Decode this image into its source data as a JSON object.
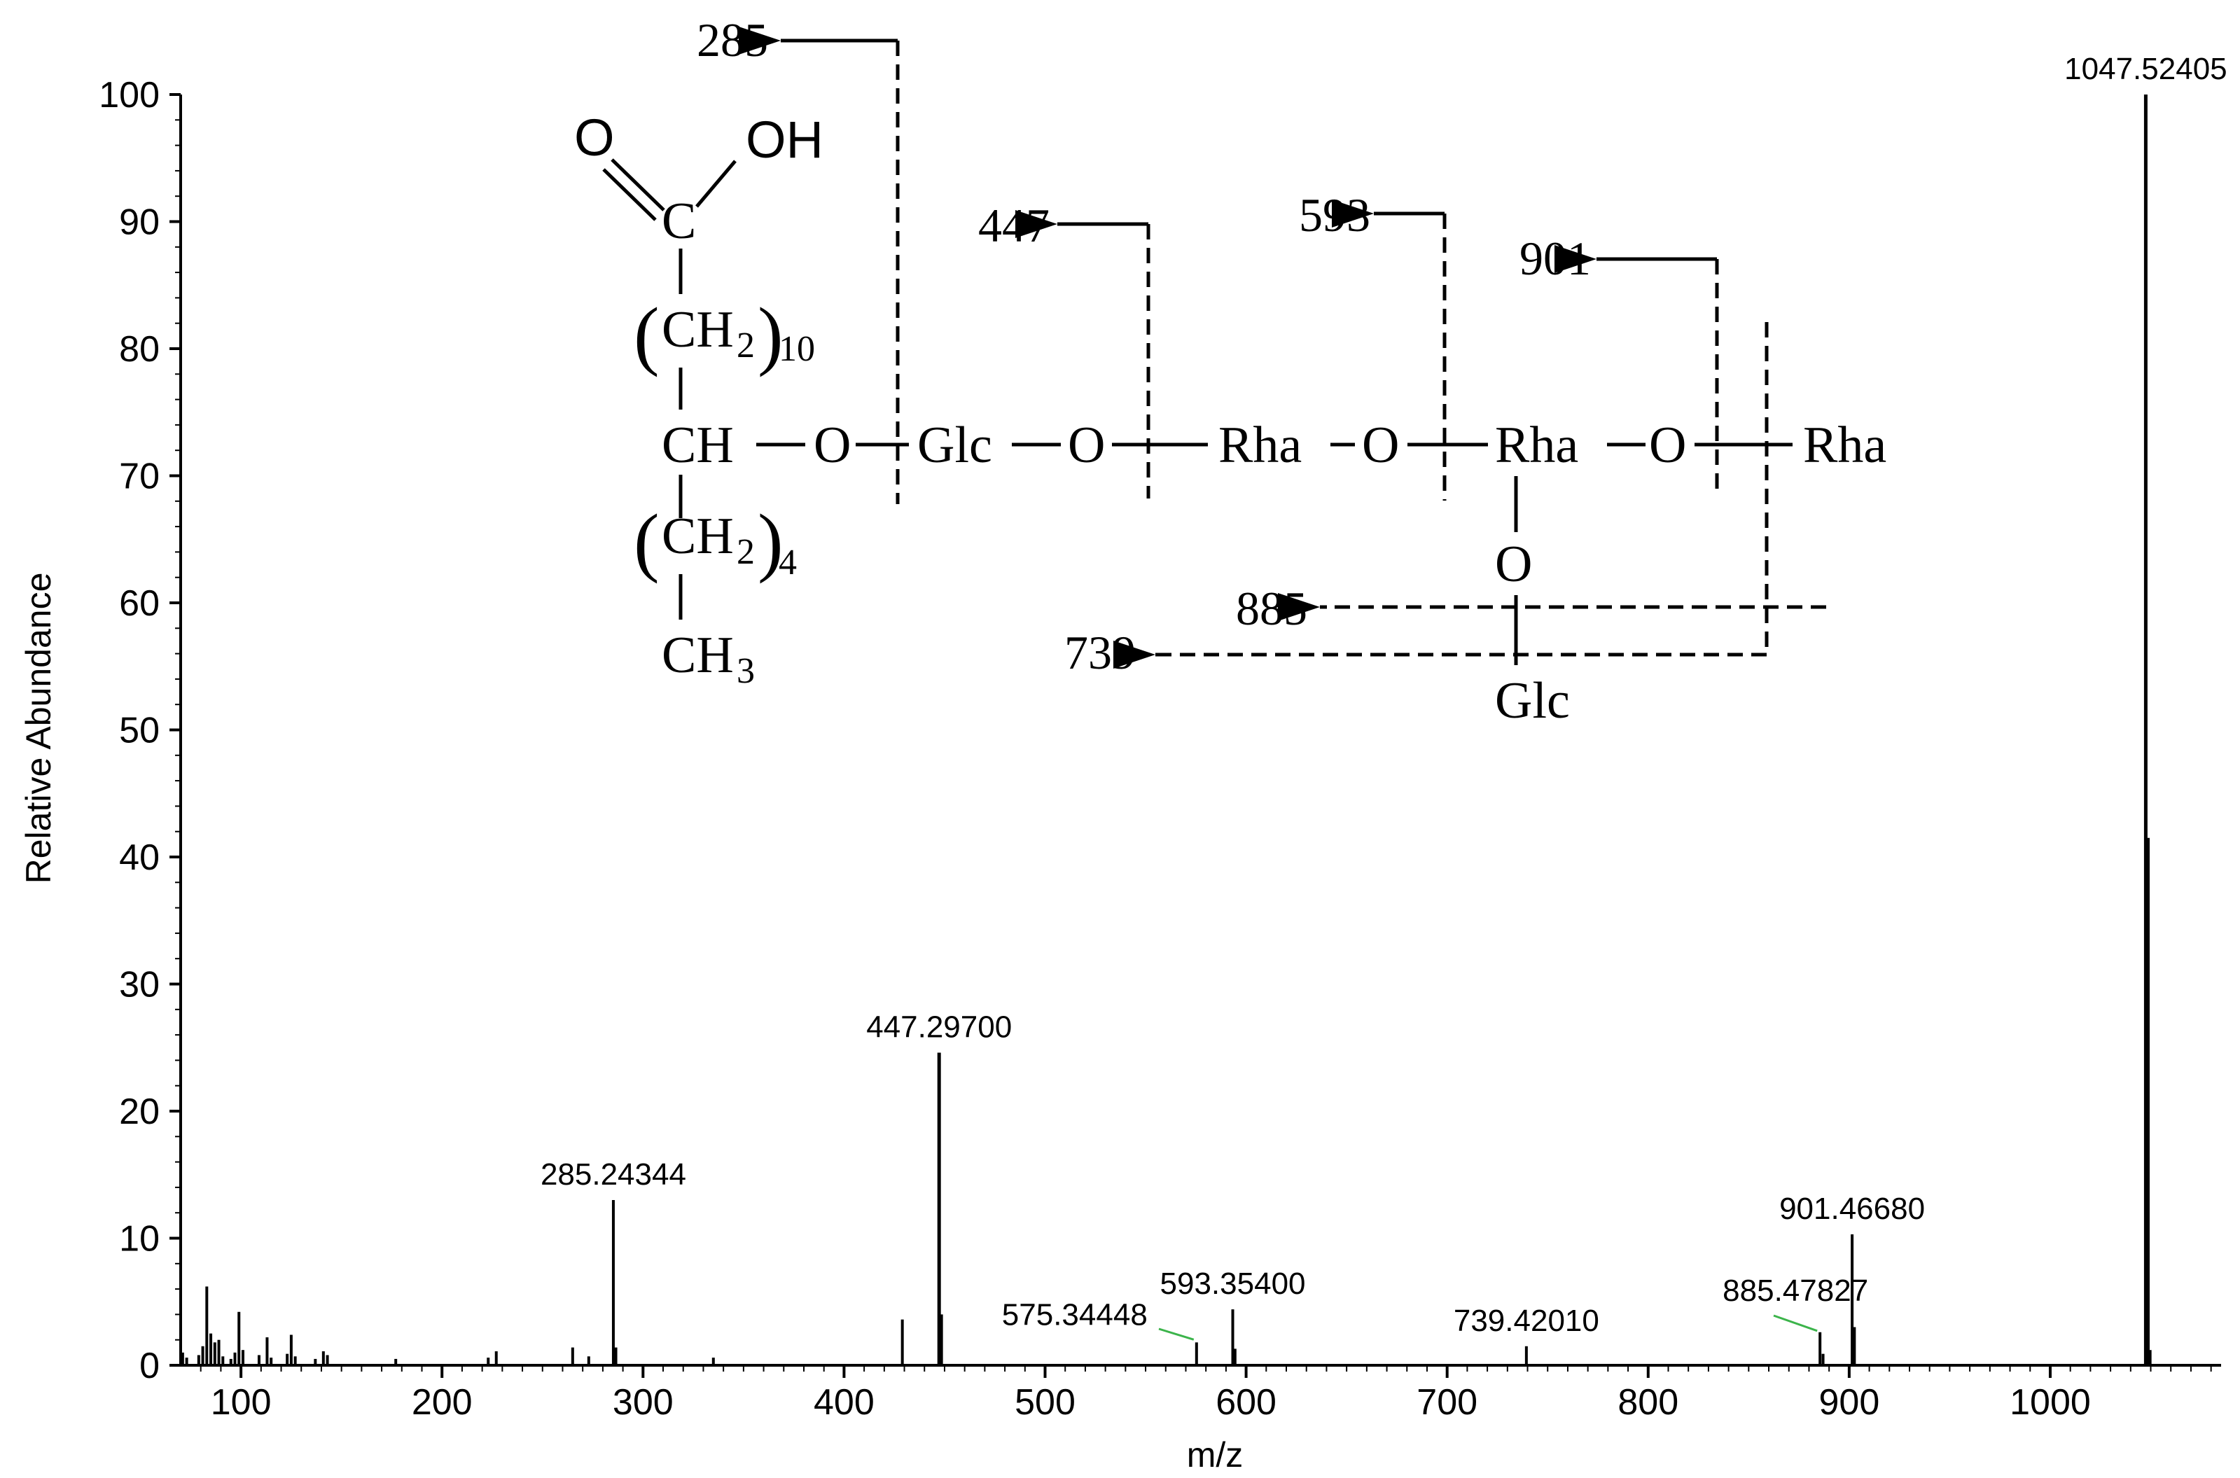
{
  "chart_data": {
    "type": "bar",
    "title": "",
    "xlabel": "m/z",
    "ylabel": "Relative Abundance",
    "xlim": [
      70,
      1085
    ],
    "ylim": [
      0,
      100
    ],
    "x_ticks": [
      100,
      200,
      300,
      400,
      500,
      600,
      700,
      800,
      900,
      1000
    ],
    "y_ticks": [
      0,
      10,
      20,
      30,
      40,
      50,
      60,
      70,
      80,
      90,
      100
    ],
    "grid": false,
    "legend": "none",
    "peaks": [
      {
        "mz": 71,
        "intensity": 1.0
      },
      {
        "mz": 73,
        "intensity": 0.6
      },
      {
        "mz": 79,
        "intensity": 0.8
      },
      {
        "mz": 81,
        "intensity": 1.5
      },
      {
        "mz": 83,
        "intensity": 6.2
      },
      {
        "mz": 85,
        "intensity": 2.5
      },
      {
        "mz": 87,
        "intensity": 1.8
      },
      {
        "mz": 89,
        "intensity": 2.0
      },
      {
        "mz": 91,
        "intensity": 0.7
      },
      {
        "mz": 95,
        "intensity": 0.5
      },
      {
        "mz": 97,
        "intensity": 1.0
      },
      {
        "mz": 99,
        "intensity": 4.2
      },
      {
        "mz": 101,
        "intensity": 1.2
      },
      {
        "mz": 109,
        "intensity": 0.8
      },
      {
        "mz": 113,
        "intensity": 2.2
      },
      {
        "mz": 115,
        "intensity": 0.6
      },
      {
        "mz": 123,
        "intensity": 0.9
      },
      {
        "mz": 125,
        "intensity": 2.4
      },
      {
        "mz": 127,
        "intensity": 0.7
      },
      {
        "mz": 137,
        "intensity": 0.5
      },
      {
        "mz": 141,
        "intensity": 1.1
      },
      {
        "mz": 143,
        "intensity": 0.8
      },
      {
        "mz": 177,
        "intensity": 0.5
      },
      {
        "mz": 223,
        "intensity": 0.6
      },
      {
        "mz": 227,
        "intensity": 1.1
      },
      {
        "mz": 265,
        "intensity": 1.4
      },
      {
        "mz": 273,
        "intensity": 0.7
      },
      {
        "mz": 285.24344,
        "intensity": 13.0
      },
      {
        "mz": 286.5,
        "intensity": 1.4
      },
      {
        "mz": 335,
        "intensity": 0.6
      },
      {
        "mz": 429,
        "intensity": 3.6
      },
      {
        "mz": 447.297,
        "intensity": 24.6
      },
      {
        "mz": 448.5,
        "intensity": 4.0
      },
      {
        "mz": 575.34448,
        "intensity": 1.8
      },
      {
        "mz": 593.354,
        "intensity": 4.4
      },
      {
        "mz": 594.5,
        "intensity": 1.3
      },
      {
        "mz": 739.4201,
        "intensity": 1.5
      },
      {
        "mz": 885.47827,
        "intensity": 2.6
      },
      {
        "mz": 887,
        "intensity": 0.9
      },
      {
        "mz": 901.4668,
        "intensity": 10.3
      },
      {
        "mz": 902.6,
        "intensity": 3.0
      },
      {
        "mz": 1047.52405,
        "intensity": 100.0
      },
      {
        "mz": 1048.6,
        "intensity": 41.5
      },
      {
        "mz": 1049.7,
        "intensity": 1.2
      }
    ],
    "peak_labels": [
      {
        "mz": 285.24344,
        "intensity": 13.0,
        "text": "285.24344"
      },
      {
        "mz": 447.297,
        "intensity": 24.6,
        "text": "447.29700"
      },
      {
        "mz": 575.34448,
        "intensity": 1.8,
        "text": "575.34448"
      },
      {
        "mz": 593.354,
        "intensity": 4.4,
        "text": "593.35400"
      },
      {
        "mz": 739.4201,
        "intensity": 1.5,
        "text": "739.42010"
      },
      {
        "mz": 885.47827,
        "intensity": 2.6,
        "text": "885.47827"
      },
      {
        "mz": 901.4668,
        "intensity": 10.3,
        "text": "901.46680"
      },
      {
        "mz": 1047.52405,
        "intensity": 100.0,
        "text": "1047.52405"
      }
    ]
  },
  "structure": {
    "carbonyl_o": "O",
    "hydroxyl": "OH",
    "carbon": "C",
    "ch2": "CH",
    "ch2_sub": "2",
    "ch2_repeat_upper": "10",
    "ch2_repeat_lower": "4",
    "ch": "CH",
    "ch3": "CH",
    "ch3_sub": "3",
    "oxygen": "O",
    "glc": "Glc",
    "rha": "Rha",
    "fragments": [
      "285",
      "447",
      "593",
      "901",
      "885",
      "739"
    ]
  },
  "colors": {
    "peak": "#000000",
    "label_leader": "#3cb44b"
  }
}
